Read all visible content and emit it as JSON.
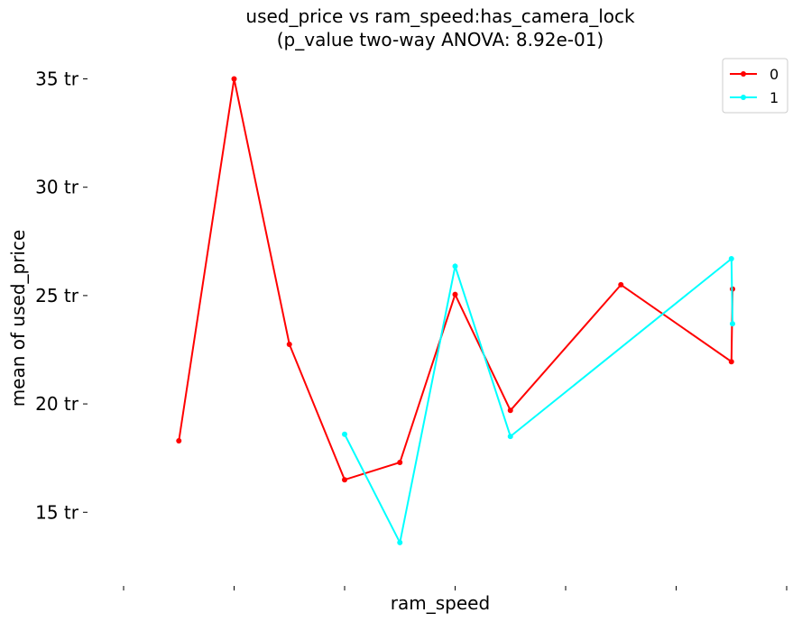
{
  "chart_data": {
    "type": "line",
    "title": "used_price vs ram_speed:has_camera_lock",
    "subtitle": "(p_value two-way ANOVA: 8.92e-01)",
    "xlabel": "ram_speed",
    "ylabel": "mean of used_price",
    "x_tick_labels": [],
    "y_ticks": [
      15,
      20,
      25,
      30,
      35
    ],
    "y_tick_labels": [
      "15 tr",
      "20 tr",
      "25 tr",
      "30 tr",
      "35 tr"
    ],
    "ylim": [
      11.6,
      37.6
    ],
    "grid": false,
    "legend_position": "top-right",
    "series": [
      {
        "name": "0",
        "color": "#ff0000",
        "points": [
          [
            0.5,
            18.3
          ],
          [
            1.0,
            35.0
          ],
          [
            1.5,
            22.75
          ],
          [
            2.0,
            16.5
          ],
          [
            2.5,
            17.3
          ],
          [
            3.0,
            25.05
          ],
          [
            3.5,
            19.7
          ],
          [
            4.5,
            25.5
          ],
          [
            5.5,
            21.95
          ],
          [
            5.51,
            25.3
          ]
        ]
      },
      {
        "name": "1",
        "color": "#00ffff",
        "points": [
          [
            2.0,
            18.6
          ],
          [
            2.5,
            13.6
          ],
          [
            3.0,
            26.35
          ],
          [
            3.5,
            18.5
          ],
          [
            5.5,
            26.7
          ],
          [
            5.51,
            23.7
          ]
        ]
      }
    ]
  }
}
